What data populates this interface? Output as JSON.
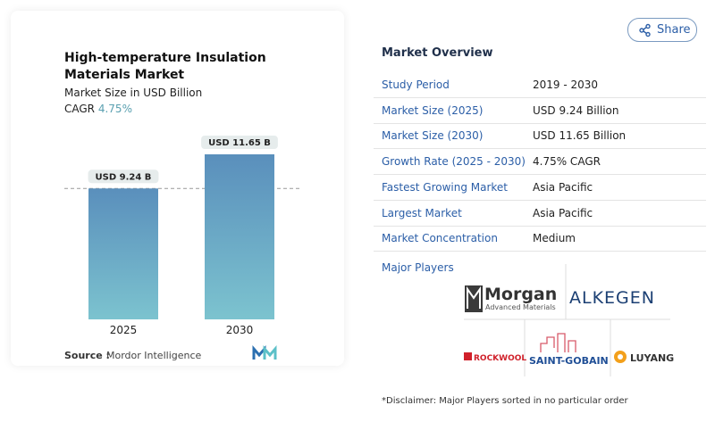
{
  "chart_data": {
    "type": "bar",
    "title": "High-temperature Insulation Materials Market",
    "subtitle": "Market Size in USD Billion",
    "cagr_label": "CAGR",
    "cagr_value": "4.75%",
    "categories": [
      "2025",
      "2030"
    ],
    "values": [
      9.24,
      11.65
    ],
    "value_labels": [
      "USD 9.24 B",
      "USD 11.65 B"
    ],
    "source_label": "Source :",
    "source": "Mordor Intelligence"
  },
  "share": "Share",
  "overview": {
    "title": "Market Overview",
    "rows": [
      [
        "Study Period",
        "2019 - 2030"
      ],
      [
        "Market Size (2025)",
        "USD 9.24 Billion"
      ],
      [
        "Market Size (2030)",
        "USD 11.65 Billion"
      ],
      [
        "Growth Rate (2025 - 2030)",
        "4.75% CAGR"
      ],
      [
        "Fastest Growing Market",
        "Asia Pacific"
      ],
      [
        "Largest Market",
        "Asia Pacific"
      ],
      [
        "Market Concentration",
        "Medium"
      ]
    ]
  },
  "players": {
    "title": "Major Players",
    "morgan": "Morgan",
    "morgan_sub": "Advanced Materials",
    "alkegen": "ALKEGEN",
    "rockwool": "ROCKWOOL",
    "saint_gobain": "SAINT-GOBAIN",
    "luyang": "LUYANG"
  },
  "disclaimer": "*Disclaimer: Major Players sorted in no particular order"
}
